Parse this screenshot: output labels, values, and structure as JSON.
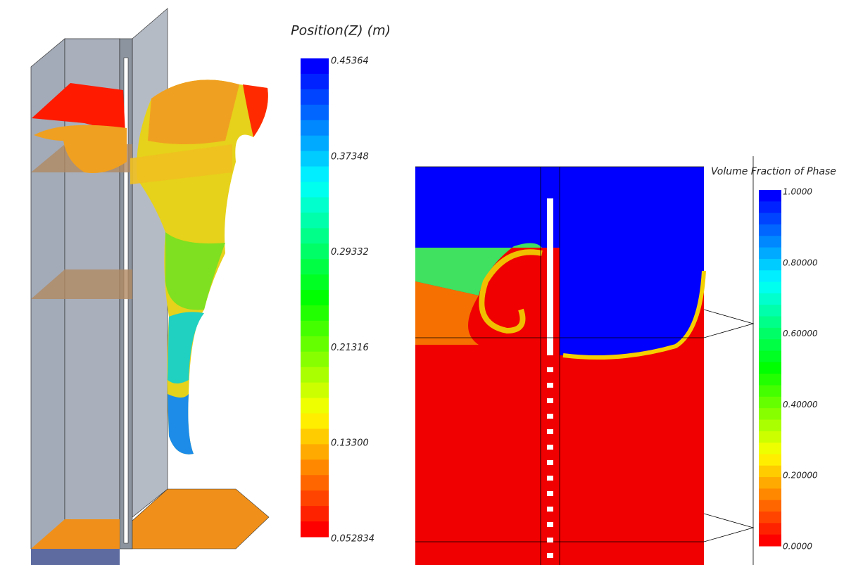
{
  "left_panel": {
    "legend": {
      "title": "Position(Z) (m)",
      "ticks": [
        "0.45364",
        "0.37348",
        "0.29332",
        "0.21316",
        "0.13300",
        "0.052834"
      ]
    }
  },
  "right_panel": {
    "legend": {
      "title": "Volume Fraction of Phase",
      "ticks": [
        "1.0000",
        "0.80000",
        "0.60000",
        "0.40000",
        "0.20000",
        "0.0000"
      ]
    }
  }
}
